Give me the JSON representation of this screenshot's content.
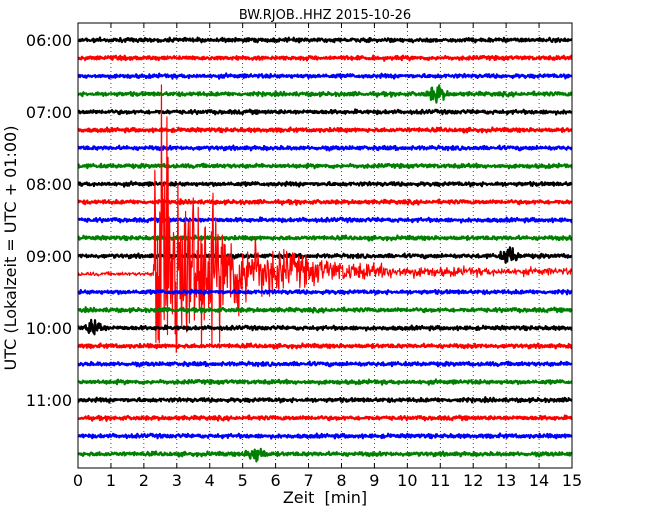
{
  "chart_data": {
    "type": "line",
    "title": "BW.RJOB..HHZ 2015-10-26",
    "xlabel": "Zeit  [min]",
    "ylabel": "UTC (Lokalzeit = UTC + 01:00)",
    "xlim": [
      0,
      15
    ],
    "x_ticks": [
      "0",
      "1",
      "2",
      "3",
      "4",
      "5",
      "6",
      "7",
      "8",
      "9",
      "10",
      "11",
      "12",
      "13",
      "14",
      "15"
    ],
    "y_ticks": [
      "06:00",
      "07:00",
      "08:00",
      "09:00",
      "10:00",
      "11:00"
    ],
    "grid": "vertical dotted lines at each minute",
    "color_cycle": [
      "#000000",
      "#ff0000",
      "#0000ff",
      "#008000"
    ],
    "traces_start_hour": "06:00",
    "trace_interval_minutes": 15,
    "trace_count": 24,
    "events": [
      {
        "trace": 13,
        "x_start": 2.3,
        "x_peak": 2.5,
        "x_decay_end": 15,
        "description": "large earthquake signal dominating trace 09:15 (red)"
      },
      {
        "trace": 3,
        "x_peak": 10.9,
        "description": "small burst on green trace 06:45"
      },
      {
        "trace": 16,
        "x_peak": 0.5,
        "description": "small burst on black trace 10:00"
      },
      {
        "trace": 12,
        "x_peak": 13.1,
        "description": "small burst on black trace 09:00"
      },
      {
        "trace": 23,
        "x_peak": 5.4,
        "description": "small burst on green trace 11:45"
      }
    ]
  }
}
